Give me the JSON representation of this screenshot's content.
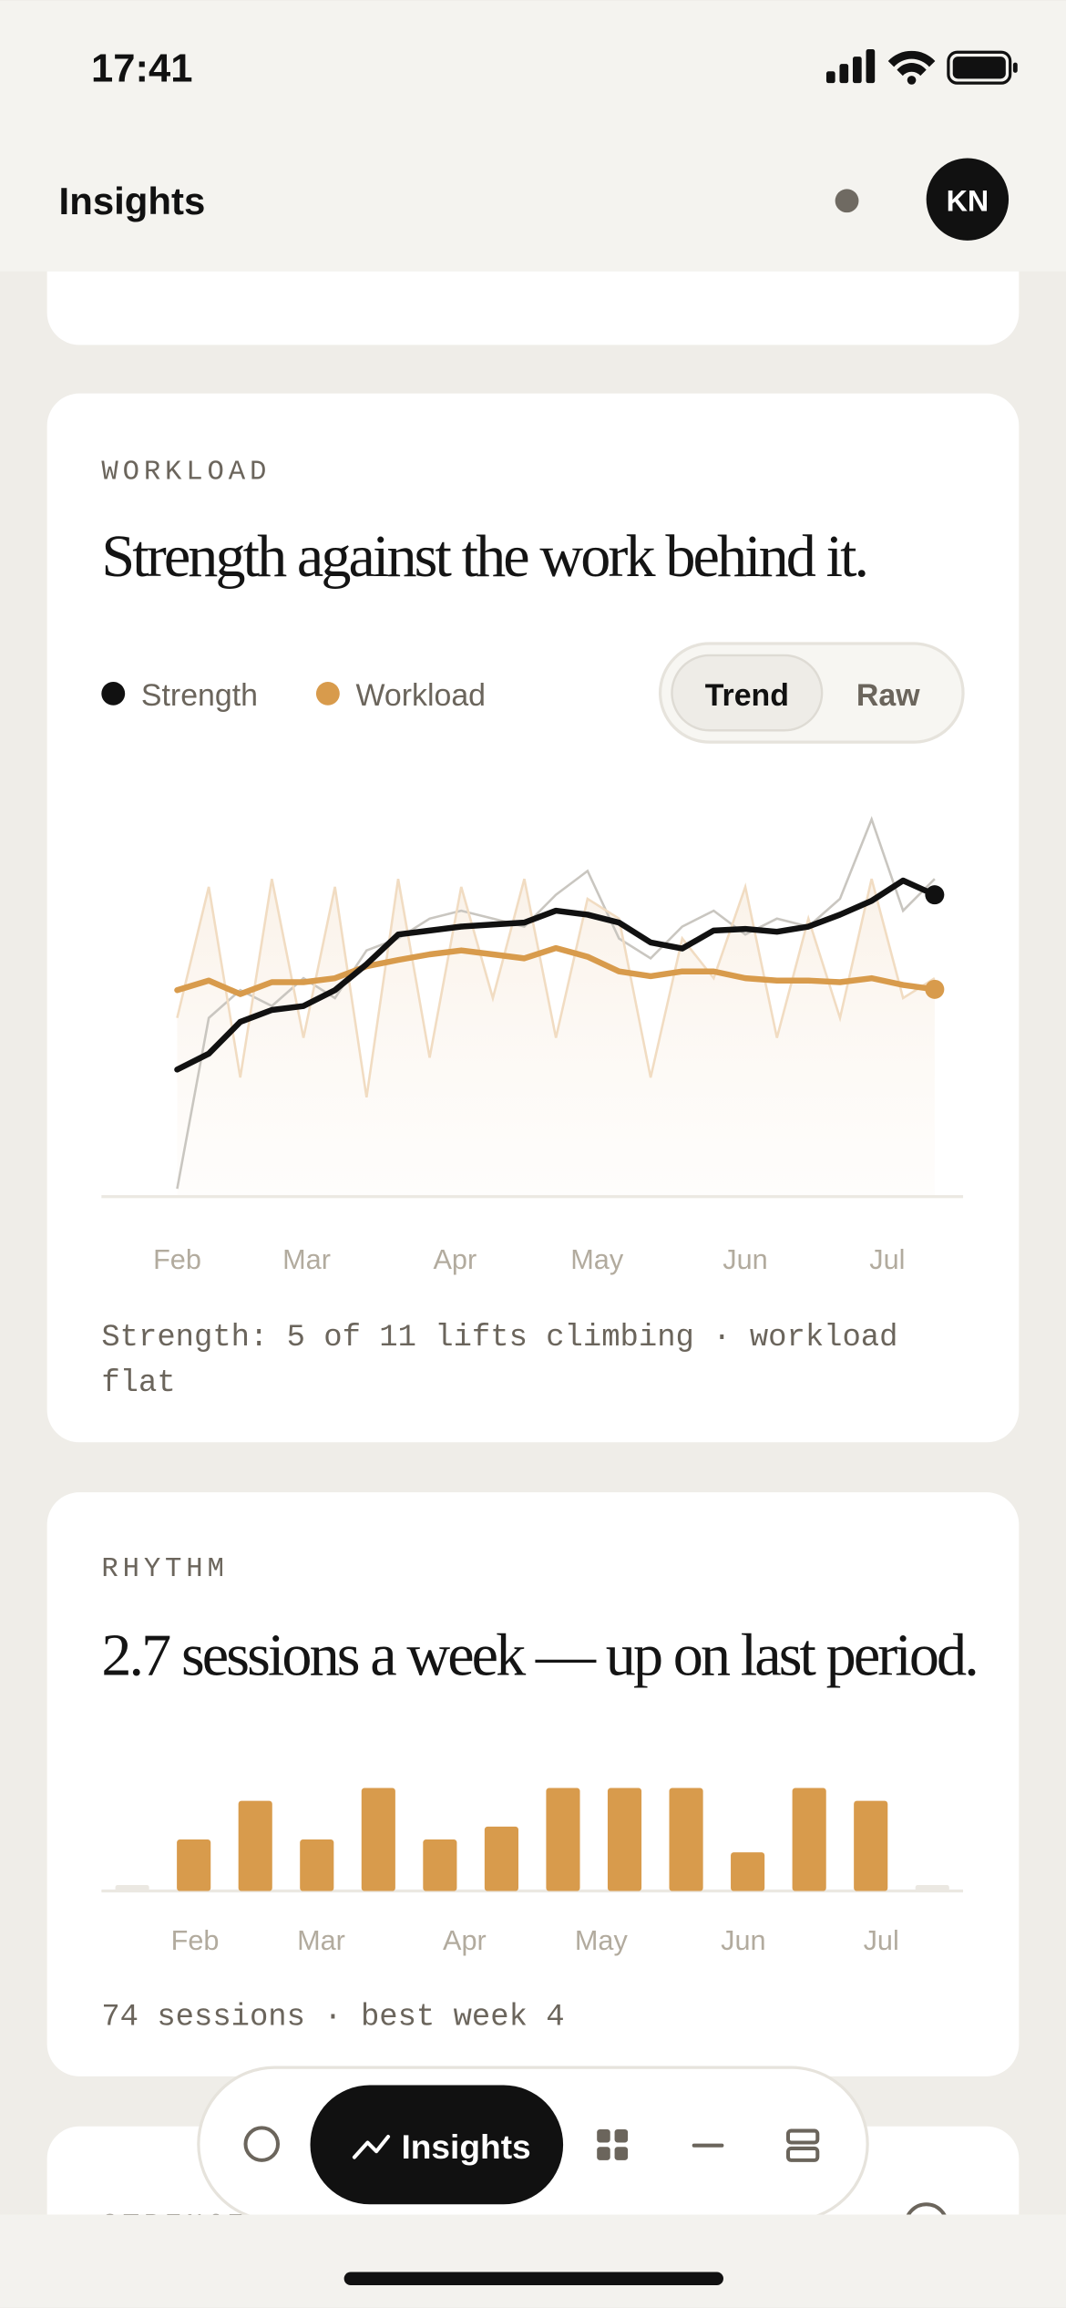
{
  "status_bar": {
    "time": "17:41"
  },
  "header": {
    "title": "Insights",
    "avatar": "KN"
  },
  "workload_card": {
    "label": "WORKLOAD",
    "headline": "Strength against the work behind it.",
    "toggle": [
      "Trend",
      "Raw"
    ],
    "chart": {
      "type": "line",
      "x": [
        0,
        1,
        2,
        3,
        4,
        5,
        6,
        7,
        8,
        9,
        10,
        11,
        12,
        13,
        14,
        15,
        16,
        17,
        18,
        19,
        20,
        21,
        22,
        23,
        24
      ],
      "xlim": [
        -2.4,
        24.9
      ],
      "ylim": [
        0,
        100
      ],
      "xticks": [
        {
          "value": 0,
          "label": "Feb"
        },
        {
          "value": 4.1,
          "label": "Mar"
        },
        {
          "value": 8.8,
          "label": "Apr"
        },
        {
          "value": 13.3,
          "label": "May"
        },
        {
          "value": 18,
          "label": "Jun"
        },
        {
          "value": 22.5,
          "label": "Jul"
        }
      ],
      "series": [
        {
          "name": "Strength",
          "color": "#111111",
          "raw_color": "#c9c6c0",
          "values": [
            32,
            36,
            44,
            47,
            48,
            52,
            58.5,
            66,
            67,
            68,
            68.5,
            69,
            72,
            71,
            69,
            64,
            62.5,
            67,
            67.4,
            66.7,
            68,
            71,
            74.5,
            79.6,
            76
          ],
          "raw_values": [
            2,
            45,
            52,
            48,
            55,
            50,
            62,
            65,
            70,
            72,
            70,
            68,
            76,
            82,
            65,
            60,
            68,
            72,
            66,
            70,
            68,
            75,
            95,
            72,
            80
          ]
        },
        {
          "name": "Workload",
          "color": "#d89b4c",
          "raw_color": "#f1dcc2",
          "values": [
            52,
            54.4,
            51,
            54,
            54,
            55,
            58,
            59.6,
            61,
            62,
            61,
            60,
            62.6,
            60.4,
            56.7,
            55.5,
            56.7,
            56.7,
            55,
            54.4,
            54.4,
            54,
            55,
            53.3,
            52.2
          ],
          "raw_values": [
            45,
            78,
            30,
            80,
            40,
            78,
            25,
            80,
            35,
            78,
            50,
            80,
            40,
            75,
            70,
            30,
            65,
            55,
            78,
            40,
            70,
            45,
            80,
            50,
            55
          ]
        }
      ]
    },
    "footnote": [
      "Strength: 5 of 11 lifts climbing · workload",
      "flat"
    ]
  },
  "rhythm_card": {
    "label": "RHYTHM",
    "headline": "2.7 sessions a week — up on last period.",
    "chart": {
      "type": "bar",
      "x": [
        0,
        1,
        2,
        3,
        4,
        5,
        6,
        7,
        8,
        9,
        10,
        11,
        12,
        13
      ],
      "values": [
        0,
        2,
        3.5,
        2,
        4,
        2,
        2.5,
        4,
        4,
        4,
        1.5,
        4,
        3.5,
        0
      ],
      "color": "#d89b4c",
      "empty_color": "#ebe8e2",
      "xlim": [
        -0.5,
        13.5
      ],
      "ylim": [
        0,
        4
      ],
      "xticks": [
        {
          "value": 1.02,
          "label": "Feb"
        },
        {
          "value": 3.07,
          "label": "Mar"
        },
        {
          "value": 5.4,
          "label": "Apr"
        },
        {
          "value": 7.62,
          "label": "May"
        },
        {
          "value": 9.93,
          "label": "Jun"
        },
        {
          "value": 12.17,
          "label": "Jul"
        }
      ]
    },
    "footnote": "74 sessions · best week 4"
  },
  "next_card": {
    "label": "STRENGTH"
  },
  "tab_bar": {
    "active": "Insights"
  }
}
